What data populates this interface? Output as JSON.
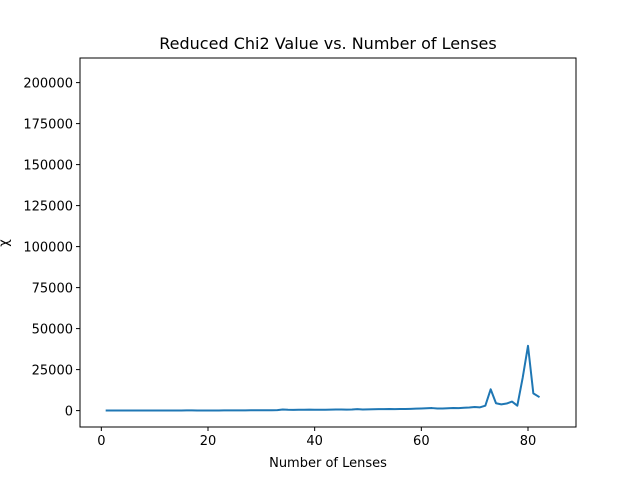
{
  "chart_data": {
    "type": "line",
    "title": "Reduced Chi2 Value vs. Number of Lenses",
    "xlabel": "Number of Lenses",
    "ylabel": "χ",
    "xlim": [
      -4,
      89
    ],
    "ylim": [
      -10000,
      215000
    ],
    "xticks": [
      0,
      20,
      40,
      60,
      80
    ],
    "yticks": [
      0,
      25000,
      50000,
      75000,
      100000,
      125000,
      150000,
      175000,
      200000
    ],
    "grid": false,
    "series": [
      {
        "color": "#1f77b4",
        "x": [
          1,
          2,
          3,
          4,
          5,
          6,
          7,
          8,
          9,
          10,
          11,
          12,
          13,
          14,
          15,
          16,
          17,
          18,
          19,
          20,
          21,
          22,
          23,
          24,
          25,
          26,
          27,
          28,
          29,
          30,
          31,
          32,
          33,
          34,
          35,
          36,
          37,
          38,
          39,
          40,
          41,
          42,
          43,
          44,
          45,
          46,
          47,
          48,
          49,
          50,
          51,
          52,
          53,
          54,
          55,
          56,
          57,
          58,
          59,
          60,
          61,
          62,
          63,
          64,
          65,
          66,
          67,
          68,
          69,
          70,
          71,
          72,
          73,
          74,
          75,
          76,
          77,
          78,
          79,
          80,
          81,
          82
        ],
        "y": [
          80,
          80,
          80,
          80,
          80,
          80,
          80,
          80,
          80,
          80,
          80,
          80,
          80,
          80,
          90,
          130,
          110,
          90,
          90,
          90,
          100,
          100,
          110,
          130,
          130,
          150,
          170,
          180,
          200,
          200,
          220,
          240,
          300,
          650,
          500,
          450,
          480,
          510,
          560,
          520,
          500,
          520,
          600,
          700,
          650,
          620,
          660,
          900,
          700,
          760,
          820,
          900,
          920,
          980,
          900,
          1000,
          950,
          1050,
          1200,
          1300,
          1450,
          1550,
          1300,
          1250,
          1400,
          1600,
          1500,
          1700,
          1900,
          2200,
          2000,
          3000,
          13000,
          4500,
          3800,
          4300,
          5500,
          3000,
          20000,
          39500,
          10500,
          8500
        ]
      }
    ]
  }
}
